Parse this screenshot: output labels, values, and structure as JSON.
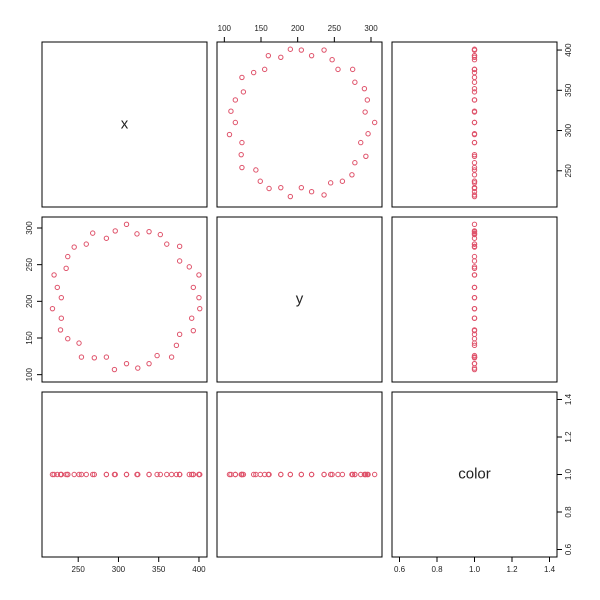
{
  "chart_data": {
    "type": "scatter-matrix",
    "variables": [
      "x",
      "y",
      "color"
    ],
    "color": "#DF536B",
    "series": [
      {
        "name": "x",
        "lim": [
          205,
          410
        ],
        "ticks": [
          250,
          300,
          350,
          400
        ],
        "values": [
          400,
          393,
          400,
          388,
          376,
          376,
          360,
          352,
          338,
          323,
          310,
          296,
          285,
          268,
          260,
          245,
          237,
          235,
          220,
          224,
          229,
          218,
          229,
          228,
          237,
          251,
          254,
          270,
          285,
          295,
          310,
          324,
          338,
          348,
          366,
          372,
          376,
          393,
          391,
          401
        ]
      },
      {
        "name": "y",
        "lim": [
          90,
          315
        ],
        "ticks": [
          100,
          150,
          200,
          250,
          300
        ],
        "values": [
          205,
          219,
          236,
          247,
          255,
          275,
          278,
          291,
          295,
          292,
          305,
          296,
          286,
          293,
          278,
          274,
          261,
          245,
          236,
          219,
          205,
          190,
          177,
          161,
          149,
          143,
          124,
          123,
          124,
          107,
          115,
          109,
          115,
          126,
          124,
          140,
          155,
          160,
          177,
          190
        ]
      },
      {
        "name": "color",
        "lim": [
          0.56,
          1.44
        ],
        "ticks": [
          0.6,
          0.8,
          {
            "value": 1,
            "label": "1.0"
          },
          1.2,
          1.4
        ],
        "values": [
          1,
          1,
          1,
          1,
          1,
          1,
          1,
          1,
          1,
          1,
          1,
          1,
          1,
          1,
          1,
          1,
          1,
          1,
          1,
          1,
          1,
          1,
          1,
          1,
          1,
          1,
          1,
          1,
          1,
          1,
          1,
          1,
          1,
          1,
          1,
          1,
          1,
          1,
          1,
          1
        ]
      }
    ]
  }
}
